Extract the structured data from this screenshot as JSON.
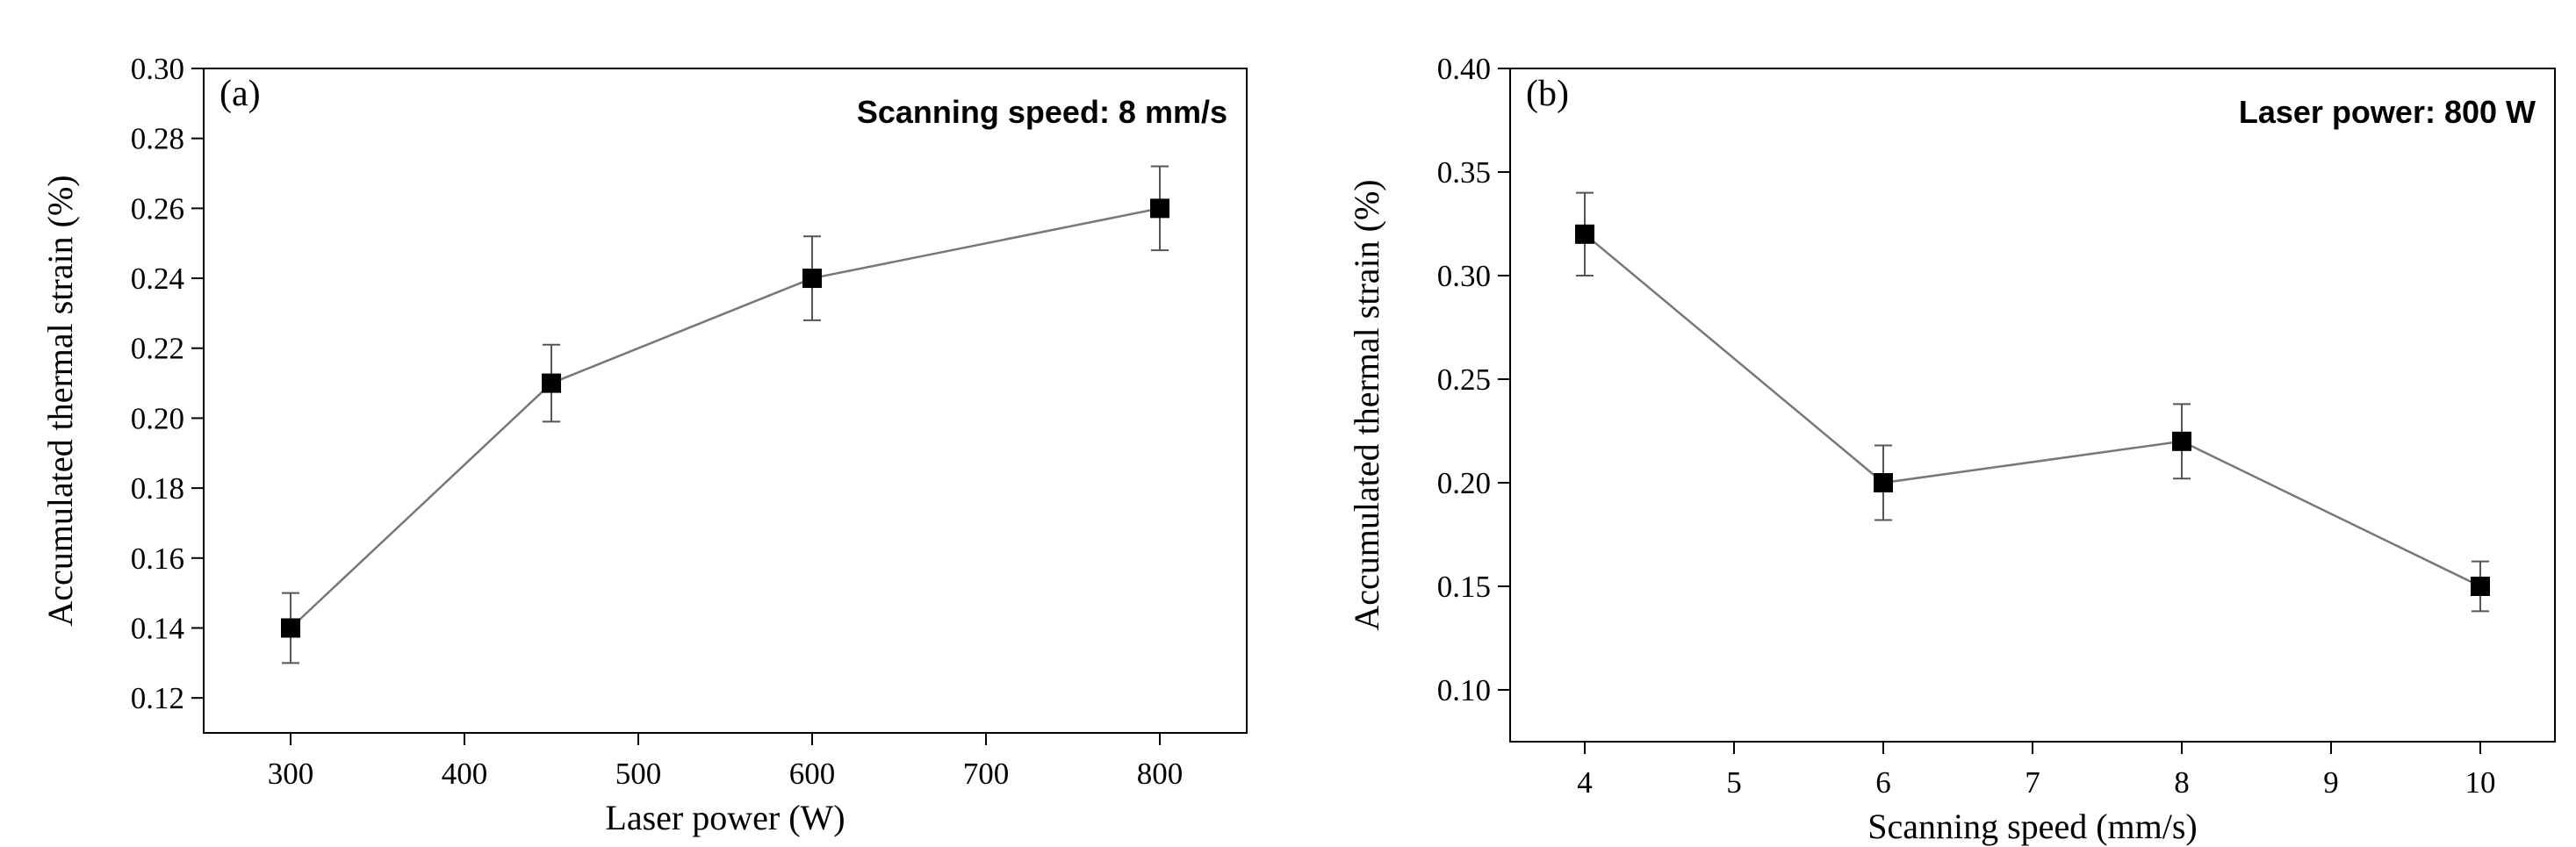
{
  "chart_data": [
    {
      "type": "line",
      "panel_label": "(a)",
      "annotation": "Scanning speed: 8 mm/s",
      "xlabel": "Laser power (W)",
      "ylabel": "Accumulated thermal strain (%)",
      "xlim": [
        250,
        850
      ],
      "ylim": [
        0.11,
        0.3
      ],
      "x_ticks": [
        300,
        400,
        500,
        600,
        700,
        800
      ],
      "x_tick_labels": [
        "300",
        "400",
        "500",
        "600",
        "700",
        "800"
      ],
      "y_ticks": [
        0.12,
        0.14,
        0.16,
        0.18,
        0.2,
        0.22,
        0.24,
        0.26,
        0.28,
        0.3
      ],
      "y_tick_labels": [
        "0.12",
        "0.14",
        "0.16",
        "0.18",
        "0.20",
        "0.22",
        "0.24",
        "0.26",
        "0.28",
        "0.30"
      ],
      "grid": false,
      "series": [
        {
          "name": "Accumulated thermal strain",
          "x": [
            300,
            450,
            600,
            800
          ],
          "y": [
            0.14,
            0.21,
            0.24,
            0.26
          ],
          "error": [
            0.01,
            0.011,
            0.012,
            0.012
          ]
        }
      ]
    },
    {
      "type": "line",
      "panel_label": "(b)",
      "annotation": "Laser power: 800 W",
      "xlabel": "Scanning speed (mm/s)",
      "ylabel": "Accumulated thermal strain (%)",
      "xlim": [
        3.5,
        10.5
      ],
      "ylim": [
        0.075,
        0.4
      ],
      "x_ticks": [
        4,
        5,
        6,
        7,
        8,
        9,
        10
      ],
      "x_tick_labels": [
        "4",
        "5",
        "6",
        "7",
        "8",
        "9",
        "10"
      ],
      "y_ticks": [
        0.1,
        0.15,
        0.2,
        0.25,
        0.3,
        0.35,
        0.4
      ],
      "y_tick_labels": [
        "0.10",
        "0.15",
        "0.20",
        "0.25",
        "0.30",
        "0.35",
        "0.40"
      ],
      "grid": false,
      "series": [
        {
          "name": "Accumulated thermal strain",
          "x": [
            4,
            6,
            8,
            10
          ],
          "y": [
            0.32,
            0.2,
            0.22,
            0.15
          ],
          "error": [
            0.02,
            0.018,
            0.018,
            0.012
          ]
        }
      ]
    }
  ]
}
